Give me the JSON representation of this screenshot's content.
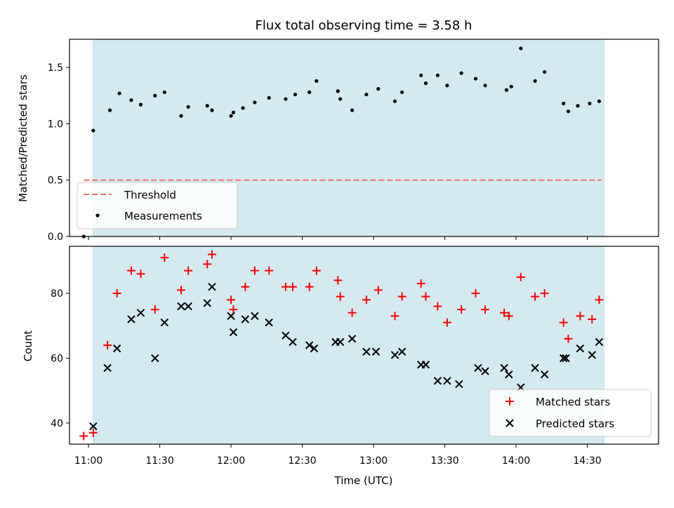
{
  "colors": {
    "shade": "#d4eaf1",
    "shade_edge": "#b5dbe6",
    "threshold": "#f07070",
    "matched": "#ff0000",
    "predicted": "#000000"
  },
  "chart_data": [
    {
      "type": "scatter",
      "panel": "top",
      "title": "Flux total observing time = 3.58 h",
      "ylabel": "Matched/Predicted stars",
      "xlabel": "",
      "xlim": [
        "10:52",
        "15:00"
      ],
      "ylim": [
        0,
        1.75
      ],
      "yticks": [
        0.0,
        0.5,
        1.0,
        1.5
      ],
      "ytick_labels": [
        "0.0",
        "0.5",
        "1.0",
        "1.5"
      ],
      "xticks": [
        "11:00",
        "11:30",
        "12:00",
        "12:30",
        "13:00",
        "13:30",
        "14:00",
        "14:30"
      ],
      "shaded_span": [
        "11:02",
        "14:37"
      ],
      "threshold": {
        "name": "Threshold",
        "value": 0.5,
        "x_range": [
          "10:58",
          "14:36"
        ]
      },
      "legend": {
        "placement": "lower-left",
        "entries": [
          "Threshold",
          "Measurements"
        ]
      },
      "series": [
        {
          "name": "Measurements",
          "marker": "dot",
          "x": [
            "10:58",
            "11:02",
            "11:09",
            "11:13",
            "11:18",
            "11:22",
            "11:28",
            "11:32",
            "11:39",
            "11:42",
            "11:50",
            "11:52",
            "12:00",
            "12:01",
            "12:05",
            "12:10",
            "12:16",
            "12:23",
            "12:27",
            "12:33",
            "12:36",
            "12:45",
            "12:46",
            "12:51",
            "12:57",
            "13:02",
            "13:09",
            "13:12",
            "13:20",
            "13:22",
            "13:27",
            "13:31",
            "13:37",
            "13:43",
            "13:47",
            "13:56",
            "13:58",
            "14:02",
            "14:08",
            "14:12",
            "14:20",
            "14:22",
            "14:26",
            "14:31",
            "14:35"
          ],
          "values": [
            0.0,
            0.94,
            1.12,
            1.27,
            1.21,
            1.17,
            1.25,
            1.28,
            1.07,
            1.15,
            1.16,
            1.12,
            1.07,
            1.1,
            1.14,
            1.19,
            1.23,
            1.22,
            1.26,
            1.28,
            1.38,
            1.29,
            1.22,
            1.12,
            1.26,
            1.31,
            1.2,
            1.28,
            1.43,
            1.36,
            1.43,
            1.34,
            1.45,
            1.4,
            1.34,
            1.3,
            1.33,
            1.67,
            1.38,
            1.46,
            1.18,
            1.11,
            1.16,
            1.18,
            1.2
          ]
        }
      ]
    },
    {
      "type": "scatter",
      "panel": "bottom",
      "title": "",
      "xlabel": "Time (UTC)",
      "ylabel": "Count",
      "xlim": [
        "10:52",
        "15:00"
      ],
      "ylim": [
        33.5,
        94.5
      ],
      "yticks": [
        40,
        60,
        80
      ],
      "xticks": [
        "11:00",
        "11:30",
        "12:00",
        "12:30",
        "13:00",
        "13:30",
        "14:00",
        "14:30"
      ],
      "shaded_span": [
        "11:02",
        "14:37"
      ],
      "legend": {
        "placement": "lower-right",
        "entries": [
          "Matched stars",
          "Predicted stars"
        ]
      },
      "series": [
        {
          "name": "Matched stars",
          "marker": "plus",
          "x": [
            "10:58",
            "11:02",
            "11:08",
            "11:12",
            "11:18",
            "11:22",
            "11:28",
            "11:32",
            "11:39",
            "11:42",
            "11:50",
            "11:52",
            "12:00",
            "12:01",
            "12:06",
            "12:10",
            "12:16",
            "12:23",
            "12:26",
            "12:33",
            "12:36",
            "12:45",
            "12:46",
            "12:51",
            "12:57",
            "13:02",
            "13:09",
            "13:12",
            "13:20",
            "13:22",
            "13:27",
            "13:31",
            "13:37",
            "13:43",
            "13:47",
            "13:55",
            "13:57",
            "14:02",
            "14:08",
            "14:12",
            "14:20",
            "14:22",
            "14:27",
            "14:32",
            "14:35"
          ],
          "values": [
            36,
            37,
            64,
            80,
            87,
            86,
            75,
            91,
            81,
            87,
            89,
            92,
            78,
            75,
            82,
            87,
            87,
            82,
            82,
            82,
            87,
            84,
            79,
            74,
            78,
            81,
            73,
            79,
            83,
            79,
            76,
            71,
            75,
            80,
            75,
            74,
            73,
            85,
            79,
            80,
            71,
            66,
            73,
            72,
            78
          ]
        },
        {
          "name": "Predicted stars",
          "marker": "x",
          "x": [
            "11:02",
            "11:08",
            "11:12",
            "11:18",
            "11:22",
            "11:28",
            "11:32",
            "11:39",
            "11:42",
            "11:50",
            "11:52",
            "12:00",
            "12:01",
            "12:06",
            "12:10",
            "12:16",
            "12:23",
            "12:26",
            "12:33",
            "12:35",
            "12:44",
            "12:46",
            "12:51",
            "12:57",
            "13:01",
            "13:09",
            "13:12",
            "13:20",
            "13:22",
            "13:27",
            "13:31",
            "13:36",
            "13:44",
            "13:47",
            "13:55",
            "13:57",
            "14:02",
            "14:08",
            "14:12",
            "14:20",
            "14:21",
            "14:27",
            "14:32",
            "14:35"
          ],
          "values": [
            39,
            57,
            63,
            72,
            74,
            60,
            71,
            76,
            76,
            77,
            82,
            73,
            68,
            72,
            73,
            71,
            67,
            65,
            64,
            63,
            65,
            65,
            66,
            62,
            62,
            61,
            62,
            58,
            58,
            53,
            53,
            52,
            57,
            56,
            57,
            55,
            51,
            57,
            55,
            60,
            60,
            63,
            61,
            65
          ]
        }
      ]
    }
  ]
}
